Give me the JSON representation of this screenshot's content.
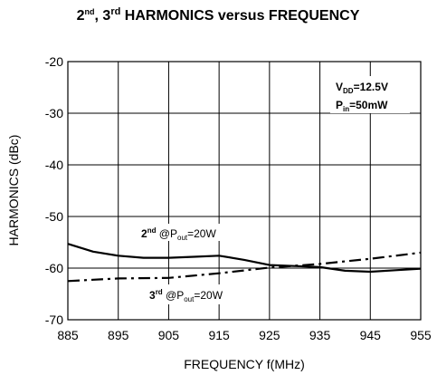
{
  "chart_data": {
    "type": "line",
    "title": {
      "n2": "2",
      "sup2": "nd",
      "sep": ", ",
      "n3": "3",
      "sup3": "rd",
      "rest": " HARMONICS versus FREQUENCY"
    },
    "xlabel": "FREQUENCY f(MHz)",
    "ylabel": "HARMONICS (dBc)",
    "xlim": [
      885,
      955
    ],
    "ylim": [
      -70,
      -20
    ],
    "x_ticks": [
      885,
      895,
      905,
      915,
      925,
      935,
      945,
      955
    ],
    "y_ticks": [
      -20,
      -30,
      -40,
      -50,
      -60,
      -70
    ],
    "grid": true,
    "conditions": {
      "vdd_main": "V",
      "vdd_sub": "DD",
      "vdd_value": "=12.5V",
      "pin_main": "P",
      "pin_sub": "in",
      "pin_value": "=50mW"
    },
    "series": [
      {
        "name": "2nd @Pout=20W",
        "label": {
          "n": "2",
          "sup": "nd",
          "at": " @P",
          "sub": "out",
          "value": "=20W"
        },
        "style": "solid",
        "x": [
          885,
          890,
          895,
          900,
          905,
          910,
          915,
          920,
          925,
          930,
          935,
          940,
          945,
          950,
          955
        ],
        "y": [
          -55.3,
          -56.8,
          -57.6,
          -58.0,
          -58.0,
          -57.8,
          -57.6,
          -58.4,
          -59.4,
          -59.6,
          -59.8,
          -60.5,
          -60.7,
          -60.4,
          -60.1
        ]
      },
      {
        "name": "3rd @Pout=20W",
        "label": {
          "n": "3",
          "sup": "rd",
          "at": " @P",
          "sub": "out",
          "value": "=20W"
        },
        "style": "dashdot",
        "x": [
          885,
          895,
          905,
          915,
          925,
          935,
          945,
          955
        ],
        "y": [
          -62.5,
          -62.0,
          -61.9,
          -61.0,
          -59.9,
          -59.2,
          -58.2,
          -57.0
        ]
      }
    ]
  }
}
